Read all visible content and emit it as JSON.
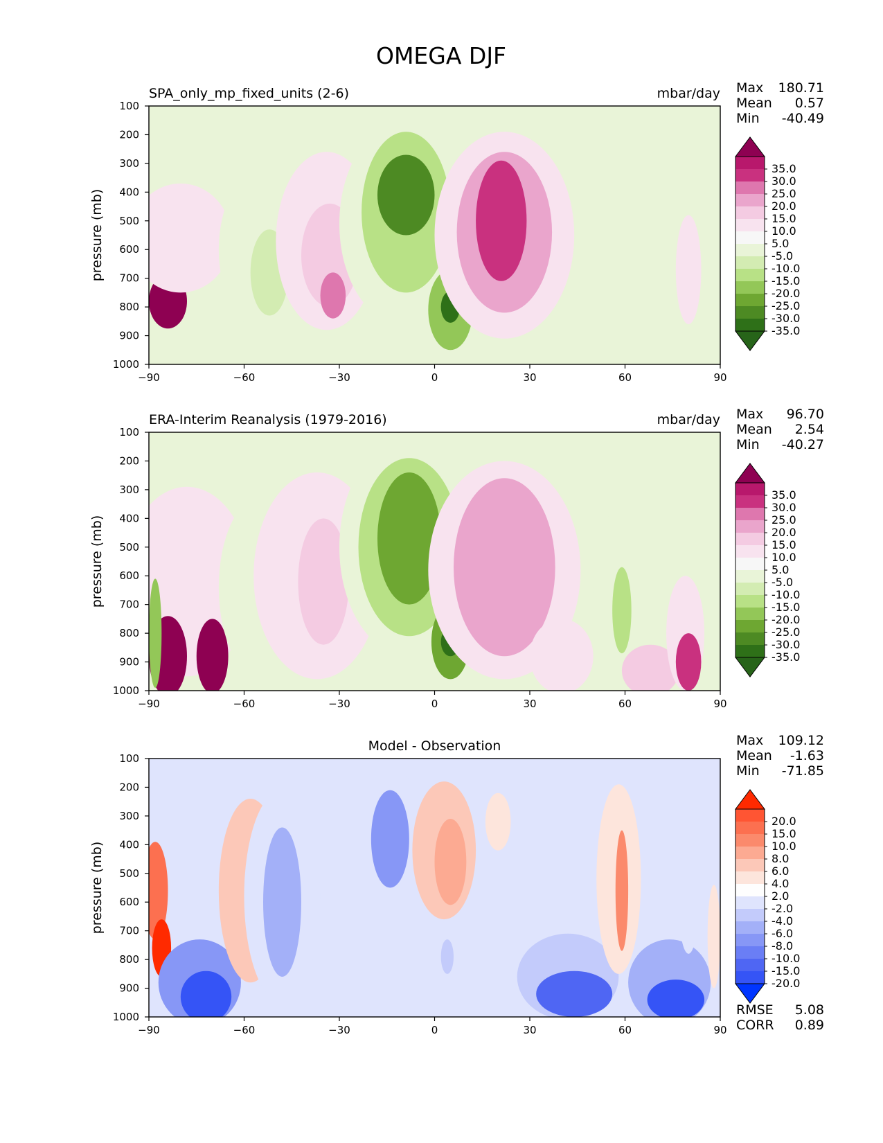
{
  "figure_title": "OMEGA DJF",
  "chart_data": [
    {
      "type": "contour",
      "title": "SPA_only_mp_fixed_units (2-6)",
      "units": "mbar/day",
      "xlabel": "",
      "ylabel": "pressure (mb)",
      "xlim": [
        -90,
        90
      ],
      "xticks": [
        "−90",
        "−60",
        "−30",
        "0",
        "30",
        "60",
        "90"
      ],
      "ylim": [
        1000,
        100
      ],
      "yticks": [
        "100",
        "200",
        "300",
        "400",
        "500",
        "600",
        "700",
        "800",
        "900",
        "1000"
      ],
      "stats": {
        "max_label": "Max",
        "max": "180.71",
        "mean_label": "Mean",
        "mean": "0.57",
        "min_label": "Min",
        "min": "-40.49"
      },
      "colorbar": {
        "labels": [
          "35.0",
          "30.0",
          "25.0",
          "20.0",
          "15.0",
          "10.0",
          "5.0",
          "-5.0",
          "-10.0",
          "-15.0",
          "-20.0",
          "-25.0",
          "-30.0",
          "-35.0"
        ],
        "colors": [
          "#8e0152",
          "#b8186c",
          "#c9317f",
          "#de77ae",
          "#eaa5cc",
          "#f4cbe2",
          "#f8e3ef",
          "#f7f7f7",
          "#e9f4d8",
          "#d3ecb2",
          "#b8e186",
          "#93c758",
          "#6ea732",
          "#4d8a23",
          "#2e7018",
          "#276419"
        ]
      },
      "regions": [
        {
          "lon": -84,
          "p": 780,
          "w": 6,
          "h": 190,
          "v": 40
        },
        {
          "lon": -80,
          "p": 560,
          "w": 16,
          "h": 380,
          "v": 6
        },
        {
          "lon": -54,
          "p": 600,
          "w": 14,
          "h": 560,
          "v": -7
        },
        {
          "lon": -52,
          "p": 680,
          "w": 6,
          "h": 300,
          "v": -12
        },
        {
          "lon": -34,
          "p": 570,
          "w": 16,
          "h": 620,
          "v": 7
        },
        {
          "lon": -33,
          "p": 620,
          "w": 9,
          "h": 360,
          "v": 14
        },
        {
          "lon": -32,
          "p": 760,
          "w": 4,
          "h": 160,
          "v": 22
        },
        {
          "lon": -10,
          "p": 510,
          "w": 20,
          "h": 700,
          "v": -6
        },
        {
          "lon": -9,
          "p": 470,
          "w": 14,
          "h": 560,
          "v": -17
        },
        {
          "lon": -9,
          "p": 410,
          "w": 9,
          "h": 280,
          "v": -31
        },
        {
          "lon": 5,
          "p": 810,
          "w": 7,
          "h": 280,
          "v": -23
        },
        {
          "lon": 5,
          "p": 800,
          "w": 3,
          "h": 110,
          "v": -38
        },
        {
          "lon": 22,
          "p": 550,
          "w": 22,
          "h": 720,
          "v": 7
        },
        {
          "lon": 22,
          "p": 540,
          "w": 15,
          "h": 560,
          "v": 18
        },
        {
          "lon": 21,
          "p": 500,
          "w": 8,
          "h": 420,
          "v": 28
        },
        {
          "lon": 55,
          "p": 780,
          "w": 10,
          "h": 380,
          "v": -6
        },
        {
          "lon": 80,
          "p": 670,
          "w": 4,
          "h": 380,
          "v": 6
        }
      ]
    },
    {
      "type": "contour",
      "title": "ERA-Interim Reanalysis (1979-2016)",
      "units": "mbar/day",
      "xlabel": "",
      "ylabel": "pressure (mb)",
      "xlim": [
        -90,
        90
      ],
      "xticks": [
        "−90",
        "−60",
        "−30",
        "0",
        "30",
        "60",
        "90"
      ],
      "ylim": [
        1000,
        100
      ],
      "yticks": [
        "100",
        "200",
        "300",
        "400",
        "500",
        "600",
        "700",
        "800",
        "900",
        "1000"
      ],
      "stats": {
        "max_label": "Max",
        "max": "96.70",
        "mean_label": "Mean",
        "mean": "2.54",
        "min_label": "Min",
        "min": "-40.27"
      },
      "colorbar": {
        "labels": [
          "35.0",
          "30.0",
          "25.0",
          "20.0",
          "15.0",
          "10.0",
          "5.0",
          "-5.0",
          "-10.0",
          "-15.0",
          "-20.0",
          "-25.0",
          "-30.0",
          "-35.0"
        ],
        "colors": [
          "#8e0152",
          "#b8186c",
          "#c9317f",
          "#de77ae",
          "#eaa5cc",
          "#f4cbe2",
          "#f8e3ef",
          "#f7f7f7",
          "#e9f4d8",
          "#d3ecb2",
          "#b8e186",
          "#93c758",
          "#6ea732",
          "#4d8a23",
          "#2e7018",
          "#276419"
        ]
      },
      "regions": [
        {
          "lon": -78,
          "p": 620,
          "w": 20,
          "h": 660,
          "v": 6
        },
        {
          "lon": -84,
          "p": 880,
          "w": 6,
          "h": 280,
          "v": 40
        },
        {
          "lon": -70,
          "p": 880,
          "w": 5,
          "h": 260,
          "v": 40
        },
        {
          "lon": -88,
          "p": 800,
          "w": 2,
          "h": 380,
          "v": -22
        },
        {
          "lon": -54,
          "p": 640,
          "w": 14,
          "h": 640,
          "v": -7
        },
        {
          "lon": -37,
          "p": 600,
          "w": 20,
          "h": 720,
          "v": 7
        },
        {
          "lon": -35,
          "p": 620,
          "w": 8,
          "h": 440,
          "v": 12
        },
        {
          "lon": -8,
          "p": 500,
          "w": 22,
          "h": 760,
          "v": -6
        },
        {
          "lon": -8,
          "p": 500,
          "w": 16,
          "h": 620,
          "v": -17
        },
        {
          "lon": -8,
          "p": 470,
          "w": 10,
          "h": 460,
          "v": -27
        },
        {
          "lon": 5,
          "p": 830,
          "w": 6,
          "h": 260,
          "v": -28
        },
        {
          "lon": 5,
          "p": 830,
          "w": 3,
          "h": 100,
          "v": -38
        },
        {
          "lon": 22,
          "p": 580,
          "w": 24,
          "h": 760,
          "v": 7
        },
        {
          "lon": 22,
          "p": 570,
          "w": 16,
          "h": 620,
          "v": 18
        },
        {
          "lon": 40,
          "p": 880,
          "w": 10,
          "h": 260,
          "v": 8
        },
        {
          "lon": 58,
          "p": 650,
          "w": 8,
          "h": 560,
          "v": -8
        },
        {
          "lon": 59,
          "p": 720,
          "w": 3,
          "h": 300,
          "v": -17
        },
        {
          "lon": 68,
          "p": 930,
          "w": 9,
          "h": 180,
          "v": 14
        },
        {
          "lon": 79,
          "p": 800,
          "w": 6,
          "h": 400,
          "v": 8
        },
        {
          "lon": 80,
          "p": 900,
          "w": 4,
          "h": 200,
          "v": 28
        }
      ]
    },
    {
      "type": "contour",
      "title": "Model - Observation",
      "units": "",
      "xlabel": "",
      "ylabel": "pressure (mb)",
      "xlim": [
        -90,
        90
      ],
      "xticks": [
        "−90",
        "−60",
        "−30",
        "0",
        "30",
        "60",
        "90"
      ],
      "ylim": [
        1000,
        100
      ],
      "yticks": [
        "100",
        "200",
        "300",
        "400",
        "500",
        "600",
        "700",
        "800",
        "900",
        "1000"
      ],
      "stats": {
        "max_label": "Max",
        "max": "109.12",
        "mean_label": "Mean",
        "mean": "-1.63",
        "min_label": "Min",
        "min": "-71.85",
        "rmse_label": "RMSE",
        "rmse": "5.08",
        "corr_label": "CORR",
        "corr": "0.89"
      },
      "colorbar": {
        "labels": [
          "20.0",
          "15.0",
          "10.0",
          "8.0",
          "6.0",
          "4.0",
          "2.0",
          "-2.0",
          "-4.0",
          "-6.0",
          "-8.0",
          "-10.0",
          "-15.0",
          "-20.0"
        ],
        "colors": [
          "#ff2a00",
          "#ff5533",
          "#fc7050",
          "#fb8a6c",
          "#fcaa92",
          "#fcc8b8",
          "#fde5dc",
          "#fefefe",
          "#dfe4fd",
          "#c3cbfb",
          "#a3b0f8",
          "#8797f6",
          "#6a7ef5",
          "#4f66f3",
          "#3554f6",
          "#0035ff"
        ]
      },
      "regions": [
        {
          "lon": -88,
          "p": 560,
          "w": 4,
          "h": 340,
          "v": 12
        },
        {
          "lon": -86,
          "p": 760,
          "w": 3,
          "h": 200,
          "v": 22
        },
        {
          "lon": -74,
          "p": 880,
          "w": 13,
          "h": 300,
          "v": -8
        },
        {
          "lon": -72,
          "p": 930,
          "w": 8,
          "h": 180,
          "v": -25
        },
        {
          "lon": -58,
          "p": 560,
          "w": 10,
          "h": 640,
          "v": 4.5
        },
        {
          "lon": -48,
          "p": 580,
          "w": 12,
          "h": 740,
          "v": -3
        },
        {
          "lon": -48,
          "p": 600,
          "w": 6,
          "h": 520,
          "v": -7
        },
        {
          "lon": -15,
          "p": 360,
          "w": 12,
          "h": 460,
          "v": -3
        },
        {
          "lon": -14,
          "p": 380,
          "w": 6,
          "h": 340,
          "v": -9
        },
        {
          "lon": 3,
          "p": 420,
          "w": 10,
          "h": 480,
          "v": 4.5
        },
        {
          "lon": 5,
          "p": 460,
          "w": 5,
          "h": 300,
          "v": 7
        },
        {
          "lon": 4,
          "p": 790,
          "w": 2,
          "h": 120,
          "v": -5
        },
        {
          "lon": 20,
          "p": 320,
          "w": 4,
          "h": 200,
          "v": 3
        },
        {
          "lon": 42,
          "p": 860,
          "w": 16,
          "h": 300,
          "v": -5
        },
        {
          "lon": 44,
          "p": 920,
          "w": 12,
          "h": 160,
          "v": -15
        },
        {
          "lon": 58,
          "p": 520,
          "w": 7,
          "h": 660,
          "v": 4
        },
        {
          "lon": 59,
          "p": 560,
          "w": 2,
          "h": 420,
          "v": 9
        },
        {
          "lon": 74,
          "p": 880,
          "w": 13,
          "h": 300,
          "v": -6
        },
        {
          "lon": 76,
          "p": 940,
          "w": 9,
          "h": 140,
          "v": -22
        },
        {
          "lon": 80,
          "p": 620,
          "w": 3,
          "h": 320,
          "v": -3
        },
        {
          "lon": 88,
          "p": 720,
          "w": 2,
          "h": 360,
          "v": 3
        }
      ]
    }
  ]
}
